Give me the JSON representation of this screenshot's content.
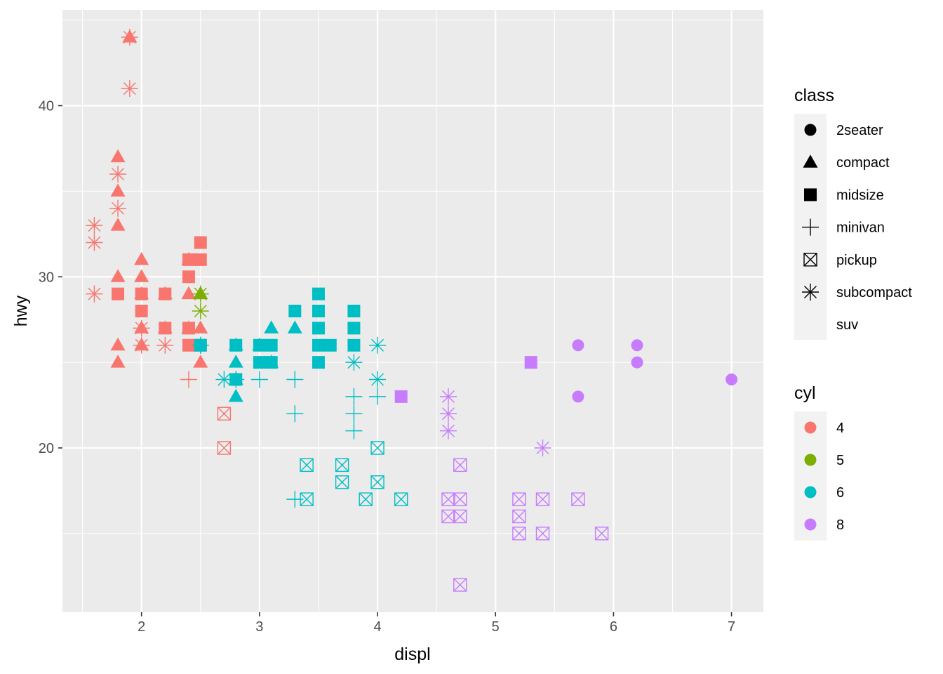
{
  "chart_data": {
    "type": "scatter",
    "xlabel": "displ",
    "ylabel": "hwy",
    "xlim": [
      1.33,
      7.27
    ],
    "ylim": [
      10.4,
      45.6
    ],
    "x_ticks": [
      2,
      3,
      4,
      5,
      6,
      7
    ],
    "y_ticks": [
      20,
      30,
      40
    ],
    "grid": true,
    "legend_position": "right",
    "shape_legend": {
      "title": "class",
      "entries": [
        {
          "label": "2seater",
          "shape": "circle"
        },
        {
          "label": "compact",
          "shape": "triangle"
        },
        {
          "label": "midsize",
          "shape": "square"
        },
        {
          "label": "minivan",
          "shape": "plus"
        },
        {
          "label": "pickup",
          "shape": "square-cross"
        },
        {
          "label": "subcompact",
          "shape": "asterisk"
        },
        {
          "label": "suv",
          "shape": "none"
        }
      ]
    },
    "color_legend": {
      "title": "cyl",
      "entries": [
        {
          "label": "4",
          "color": "#F8766D"
        },
        {
          "label": "5",
          "color": "#7CAE00"
        },
        {
          "label": "6",
          "color": "#00BFC4"
        },
        {
          "label": "8",
          "color": "#C77CFF"
        }
      ]
    },
    "points": [
      {
        "x": 1.9,
        "y": 44,
        "class": "compact",
        "cyl": "4"
      },
      {
        "x": 1.9,
        "y": 44,
        "class": "subcompact",
        "cyl": "4"
      },
      {
        "x": 1.9,
        "y": 41,
        "class": "subcompact",
        "cyl": "4"
      },
      {
        "x": 1.8,
        "y": 37,
        "class": "compact",
        "cyl": "4"
      },
      {
        "x": 1.8,
        "y": 36,
        "class": "subcompact",
        "cyl": "4"
      },
      {
        "x": 1.8,
        "y": 35,
        "class": "compact",
        "cyl": "4"
      },
      {
        "x": 1.8,
        "y": 34,
        "class": "subcompact",
        "cyl": "4"
      },
      {
        "x": 1.8,
        "y": 33,
        "class": "compact",
        "cyl": "4"
      },
      {
        "x": 1.6,
        "y": 33,
        "class": "subcompact",
        "cyl": "4"
      },
      {
        "x": 1.6,
        "y": 32,
        "class": "subcompact",
        "cyl": "4"
      },
      {
        "x": 1.6,
        "y": 29,
        "class": "subcompact",
        "cyl": "4"
      },
      {
        "x": 1.8,
        "y": 30,
        "class": "compact",
        "cyl": "4"
      },
      {
        "x": 1.8,
        "y": 29,
        "class": "midsize",
        "cyl": "4"
      },
      {
        "x": 1.8,
        "y": 26,
        "class": "compact",
        "cyl": "4"
      },
      {
        "x": 1.8,
        "y": 25,
        "class": "compact",
        "cyl": "4"
      },
      {
        "x": 2.0,
        "y": 31,
        "class": "compact",
        "cyl": "4"
      },
      {
        "x": 2.0,
        "y": 30,
        "class": "compact",
        "cyl": "4"
      },
      {
        "x": 2.0,
        "y": 29,
        "class": "midsize",
        "cyl": "4"
      },
      {
        "x": 2.0,
        "y": 29,
        "class": "compact",
        "cyl": "4"
      },
      {
        "x": 2.0,
        "y": 28,
        "class": "midsize",
        "cyl": "4"
      },
      {
        "x": 2.0,
        "y": 27,
        "class": "compact",
        "cyl": "4"
      },
      {
        "x": 2.0,
        "y": 27,
        "class": "subcompact",
        "cyl": "4"
      },
      {
        "x": 2.0,
        "y": 26,
        "class": "compact",
        "cyl": "4"
      },
      {
        "x": 2.0,
        "y": 26,
        "class": "subcompact",
        "cyl": "4"
      },
      {
        "x": 2.2,
        "y": 29,
        "class": "compact",
        "cyl": "4"
      },
      {
        "x": 2.2,
        "y": 29,
        "class": "midsize",
        "cyl": "4"
      },
      {
        "x": 2.2,
        "y": 27,
        "class": "compact",
        "cyl": "4"
      },
      {
        "x": 2.2,
        "y": 27,
        "class": "midsize",
        "cyl": "4"
      },
      {
        "x": 2.2,
        "y": 26,
        "class": "subcompact",
        "cyl": "4"
      },
      {
        "x": 2.4,
        "y": 31,
        "class": "compact",
        "cyl": "4"
      },
      {
        "x": 2.4,
        "y": 31,
        "class": "midsize",
        "cyl": "4"
      },
      {
        "x": 2.4,
        "y": 30,
        "class": "midsize",
        "cyl": "4"
      },
      {
        "x": 2.4,
        "y": 29,
        "class": "compact",
        "cyl": "4"
      },
      {
        "x": 2.4,
        "y": 27,
        "class": "compact",
        "cyl": "4"
      },
      {
        "x": 2.4,
        "y": 27,
        "class": "midsize",
        "cyl": "4"
      },
      {
        "x": 2.4,
        "y": 26,
        "class": "midsize",
        "cyl": "4"
      },
      {
        "x": 2.4,
        "y": 24,
        "class": "minivan",
        "cyl": "4"
      },
      {
        "x": 2.5,
        "y": 32,
        "class": "midsize",
        "cyl": "4"
      },
      {
        "x": 2.5,
        "y": 31,
        "class": "midsize",
        "cyl": "4"
      },
      {
        "x": 2.5,
        "y": 29,
        "class": "compact",
        "cyl": "4"
      },
      {
        "x": 2.5,
        "y": 27,
        "class": "compact",
        "cyl": "4"
      },
      {
        "x": 2.5,
        "y": 26,
        "class": "midsize",
        "cyl": "4"
      },
      {
        "x": 2.5,
        "y": 26,
        "class": "subcompact",
        "cyl": "4"
      },
      {
        "x": 2.5,
        "y": 25,
        "class": "compact",
        "cyl": "4"
      },
      {
        "x": 2.7,
        "y": 22,
        "class": "pickup",
        "cyl": "4"
      },
      {
        "x": 2.7,
        "y": 20,
        "class": "pickup",
        "cyl": "4"
      },
      {
        "x": 2.5,
        "y": 29,
        "class": "compact",
        "cyl": "5"
      },
      {
        "x": 2.5,
        "y": 28,
        "class": "subcompact",
        "cyl": "5"
      },
      {
        "x": 2.5,
        "y": 29,
        "class": "subcompact",
        "cyl": "5"
      },
      {
        "x": 2.5,
        "y": 26,
        "class": "midsize",
        "cyl": "6"
      },
      {
        "x": 2.5,
        "y": 26,
        "class": "subcompact",
        "cyl": "6"
      },
      {
        "x": 2.7,
        "y": 24,
        "class": "subcompact",
        "cyl": "6"
      },
      {
        "x": 2.8,
        "y": 26,
        "class": "compact",
        "cyl": "6"
      },
      {
        "x": 2.8,
        "y": 26,
        "class": "midsize",
        "cyl": "6"
      },
      {
        "x": 2.8,
        "y": 25,
        "class": "compact",
        "cyl": "6"
      },
      {
        "x": 2.8,
        "y": 24,
        "class": "compact",
        "cyl": "6"
      },
      {
        "x": 2.8,
        "y": 24,
        "class": "midsize",
        "cyl": "6"
      },
      {
        "x": 2.8,
        "y": 24,
        "class": "subcompact",
        "cyl": "6"
      },
      {
        "x": 2.8,
        "y": 23,
        "class": "compact",
        "cyl": "6"
      },
      {
        "x": 3.0,
        "y": 26,
        "class": "compact",
        "cyl": "6"
      },
      {
        "x": 3.0,
        "y": 26,
        "class": "midsize",
        "cyl": "6"
      },
      {
        "x": 3.0,
        "y": 25,
        "class": "midsize",
        "cyl": "6"
      },
      {
        "x": 3.0,
        "y": 24,
        "class": "minivan",
        "cyl": "6"
      },
      {
        "x": 3.1,
        "y": 27,
        "class": "compact",
        "cyl": "6"
      },
      {
        "x": 3.1,
        "y": 26,
        "class": "midsize",
        "cyl": "6"
      },
      {
        "x": 3.1,
        "y": 25,
        "class": "midsize",
        "cyl": "6"
      },
      {
        "x": 3.1,
        "y": 25,
        "class": "compact",
        "cyl": "6"
      },
      {
        "x": 3.3,
        "y": 28,
        "class": "midsize",
        "cyl": "6"
      },
      {
        "x": 3.3,
        "y": 27,
        "class": "compact",
        "cyl": "6"
      },
      {
        "x": 3.3,
        "y": 24,
        "class": "minivan",
        "cyl": "6"
      },
      {
        "x": 3.3,
        "y": 22,
        "class": "minivan",
        "cyl": "6"
      },
      {
        "x": 3.3,
        "y": 17,
        "class": "minivan",
        "cyl": "6"
      },
      {
        "x": 3.4,
        "y": 19,
        "class": "pickup",
        "cyl": "6"
      },
      {
        "x": 3.4,
        "y": 17,
        "class": "pickup",
        "cyl": "6"
      },
      {
        "x": 3.5,
        "y": 29,
        "class": "midsize",
        "cyl": "6"
      },
      {
        "x": 3.5,
        "y": 28,
        "class": "midsize",
        "cyl": "6"
      },
      {
        "x": 3.5,
        "y": 27,
        "class": "midsize",
        "cyl": "6"
      },
      {
        "x": 3.5,
        "y": 26,
        "class": "midsize",
        "cyl": "6"
      },
      {
        "x": 3.5,
        "y": 25,
        "class": "midsize",
        "cyl": "6"
      },
      {
        "x": 3.6,
        "y": 26,
        "class": "midsize",
        "cyl": "6"
      },
      {
        "x": 3.7,
        "y": 19,
        "class": "pickup",
        "cyl": "6"
      },
      {
        "x": 3.7,
        "y": 18,
        "class": "pickup",
        "cyl": "6"
      },
      {
        "x": 3.8,
        "y": 28,
        "class": "midsize",
        "cyl": "6"
      },
      {
        "x": 3.8,
        "y": 27,
        "class": "midsize",
        "cyl": "6"
      },
      {
        "x": 3.8,
        "y": 26,
        "class": "midsize",
        "cyl": "6"
      },
      {
        "x": 3.8,
        "y": 25,
        "class": "subcompact",
        "cyl": "6"
      },
      {
        "x": 3.8,
        "y": 23,
        "class": "minivan",
        "cyl": "6"
      },
      {
        "x": 3.8,
        "y": 22,
        "class": "minivan",
        "cyl": "6"
      },
      {
        "x": 3.8,
        "y": 21,
        "class": "minivan",
        "cyl": "6"
      },
      {
        "x": 3.9,
        "y": 17,
        "class": "pickup",
        "cyl": "6"
      },
      {
        "x": 4.0,
        "y": 26,
        "class": "subcompact",
        "cyl": "6"
      },
      {
        "x": 4.0,
        "y": 24,
        "class": "subcompact",
        "cyl": "6"
      },
      {
        "x": 4.0,
        "y": 23,
        "class": "minivan",
        "cyl": "6"
      },
      {
        "x": 4.0,
        "y": 20,
        "class": "pickup",
        "cyl": "6"
      },
      {
        "x": 4.0,
        "y": 18,
        "class": "pickup",
        "cyl": "6"
      },
      {
        "x": 4.2,
        "y": 17,
        "class": "pickup",
        "cyl": "6"
      },
      {
        "x": 4.2,
        "y": 23,
        "class": "midsize",
        "cyl": "8"
      },
      {
        "x": 4.6,
        "y": 23,
        "class": "subcompact",
        "cyl": "8"
      },
      {
        "x": 4.6,
        "y": 22,
        "class": "subcompact",
        "cyl": "8"
      },
      {
        "x": 4.6,
        "y": 21,
        "class": "subcompact",
        "cyl": "8"
      },
      {
        "x": 4.6,
        "y": 17,
        "class": "pickup",
        "cyl": "8"
      },
      {
        "x": 4.6,
        "y": 16,
        "class": "pickup",
        "cyl": "8"
      },
      {
        "x": 4.7,
        "y": 19,
        "class": "pickup",
        "cyl": "8"
      },
      {
        "x": 4.7,
        "y": 17,
        "class": "pickup",
        "cyl": "8"
      },
      {
        "x": 4.7,
        "y": 16,
        "class": "pickup",
        "cyl": "8"
      },
      {
        "x": 4.7,
        "y": 12,
        "class": "pickup",
        "cyl": "8"
      },
      {
        "x": 5.2,
        "y": 17,
        "class": "pickup",
        "cyl": "8"
      },
      {
        "x": 5.2,
        "y": 16,
        "class": "pickup",
        "cyl": "8"
      },
      {
        "x": 5.2,
        "y": 15,
        "class": "pickup",
        "cyl": "8"
      },
      {
        "x": 5.3,
        "y": 25,
        "class": "midsize",
        "cyl": "8"
      },
      {
        "x": 5.4,
        "y": 20,
        "class": "subcompact",
        "cyl": "8"
      },
      {
        "x": 5.4,
        "y": 17,
        "class": "pickup",
        "cyl": "8"
      },
      {
        "x": 5.4,
        "y": 15,
        "class": "pickup",
        "cyl": "8"
      },
      {
        "x": 5.7,
        "y": 26,
        "class": "2seater",
        "cyl": "8"
      },
      {
        "x": 5.7,
        "y": 23,
        "class": "2seater",
        "cyl": "8"
      },
      {
        "x": 5.7,
        "y": 17,
        "class": "pickup",
        "cyl": "8"
      },
      {
        "x": 5.9,
        "y": 15,
        "class": "pickup",
        "cyl": "8"
      },
      {
        "x": 6.2,
        "y": 26,
        "class": "2seater",
        "cyl": "8"
      },
      {
        "x": 6.2,
        "y": 25,
        "class": "2seater",
        "cyl": "8"
      },
      {
        "x": 7.0,
        "y": 24,
        "class": "2seater",
        "cyl": "8"
      }
    ]
  }
}
